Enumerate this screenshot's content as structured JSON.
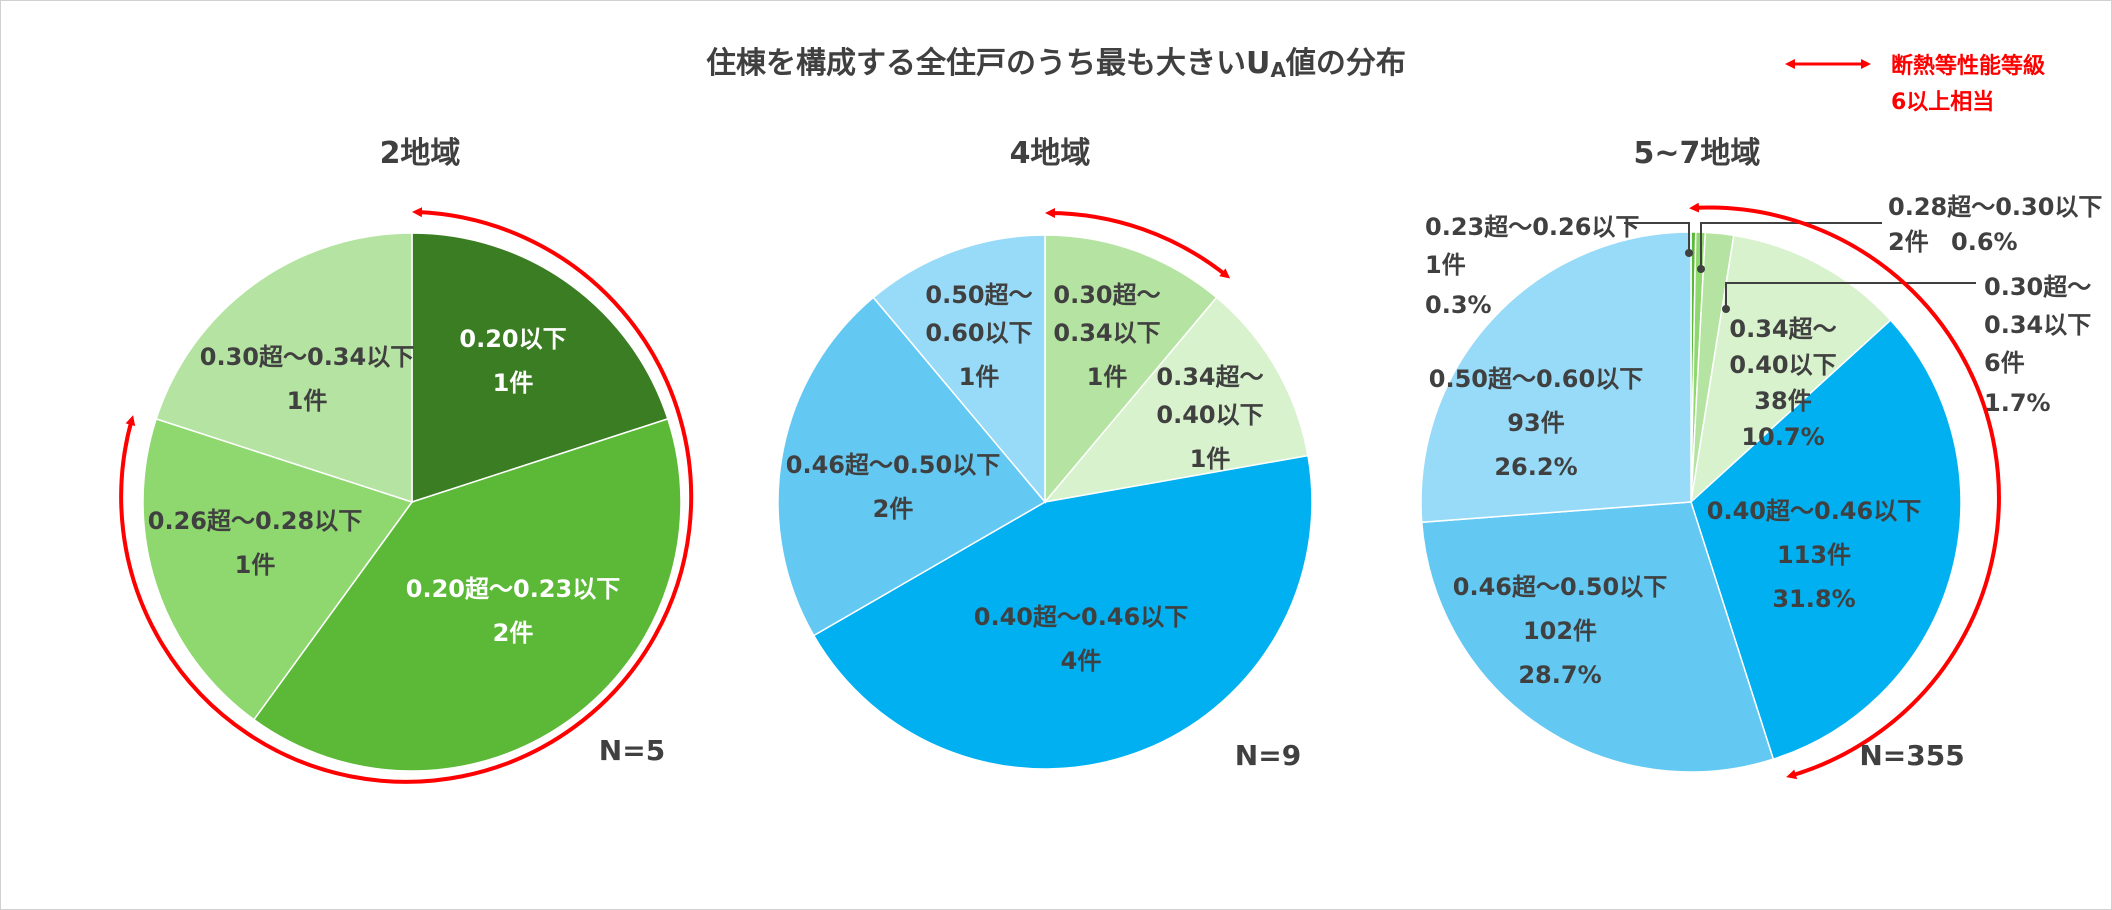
{
  "title": "住棟を構成する全住戸のうち最も大きいU",
  "title_sub": "A",
  "title_after": "値の分布",
  "legend": {
    "line1": "断熱等性能等級",
    "line2": "6以上相当",
    "color": "#ff0000"
  },
  "colors": {
    "green_dark": "#3a7d22",
    "green_mid": "#5bb937",
    "green_light": "#8ed86f",
    "green_pale": "#b5e4a2",
    "green_paler": "#d8f2cd",
    "blue_deep": "#00b0f0",
    "blue_mid": "#63c8f2",
    "blue_light": "#98dbf8",
    "arrow": "#ff0000",
    "text_dark": "#404040",
    "text_white": "#ffffff"
  },
  "chart_data": [
    {
      "type": "pie",
      "title": "2地域",
      "n_label": "N=5",
      "slices": [
        {
          "label": "0.20以下",
          "count_text": "1件",
          "value": 1,
          "color": "#3a7d22"
        },
        {
          "label": "0.20超〜0.23以下",
          "count_text": "2件",
          "value": 2,
          "color": "#5bb937"
        },
        {
          "label": "0.26超〜0.28以下",
          "count_text": "1件",
          "value": 1,
          "color": "#8ed86f"
        },
        {
          "label": "0.30超〜0.34以下",
          "count_text": "1件",
          "value": 1,
          "color": "#b5e4a2"
        }
      ]
    },
    {
      "type": "pie",
      "title": "4地域",
      "n_label": "N=9",
      "slices": [
        {
          "label": "0.30超〜0.34以下",
          "label_lines": [
            "0.30超〜",
            "0.34以下"
          ],
          "count_text": "1件",
          "value": 1,
          "color": "#b5e4a2"
        },
        {
          "label": "0.34超〜0.40以下",
          "label_lines": [
            "0.34超〜",
            "0.40以下"
          ],
          "count_text": "1件",
          "value": 1,
          "color": "#d8f2cd"
        },
        {
          "label": "0.40超〜0.46以下",
          "count_text": "4件",
          "value": 4,
          "color": "#00b0f0"
        },
        {
          "label": "0.46超〜0.50以下",
          "count_text": "2件",
          "value": 2,
          "color": "#63c8f2"
        },
        {
          "label": "0.50超〜0.60以下",
          "label_lines": [
            "0.50超〜",
            "0.60以下"
          ],
          "count_text": "1件",
          "value": 1,
          "color": "#98dbf8"
        }
      ]
    },
    {
      "type": "pie",
      "title": "5~7地域",
      "n_label": "N=355",
      "slices": [
        {
          "label": "0.23超〜0.26以下",
          "count_text": "1件",
          "percent_text": "0.3%",
          "value": 1,
          "color": "#5bb937"
        },
        {
          "label": "0.28超〜0.30以下",
          "count_text": "2件",
          "percent_text": "0.6%",
          "value": 2,
          "color": "#8ed86f"
        },
        {
          "label": "0.30超〜0.34以下",
          "label_lines": [
            "0.30超〜",
            "0.34以下"
          ],
          "count_text": "6件",
          "percent_text": "1.7%",
          "value": 6,
          "color": "#b5e4a2"
        },
        {
          "label": "0.34超〜0.40以下",
          "label_lines": [
            "0.34超〜",
            "0.40以下"
          ],
          "count_text": "38件",
          "percent_text": "10.7%",
          "value": 38,
          "color": "#d8f2cd"
        },
        {
          "label": "0.40超〜0.46以下",
          "count_text": "113件",
          "percent_text": "31.8%",
          "value": 113,
          "color": "#00b0f0"
        },
        {
          "label": "0.46超〜0.50以下",
          "count_text": "102件",
          "percent_text": "28.7%",
          "value": 102,
          "color": "#63c8f2"
        },
        {
          "label": "0.50超〜0.60以下",
          "count_text": "93件",
          "percent_text": "26.2%",
          "value": 93,
          "color": "#98dbf8"
        }
      ]
    }
  ]
}
